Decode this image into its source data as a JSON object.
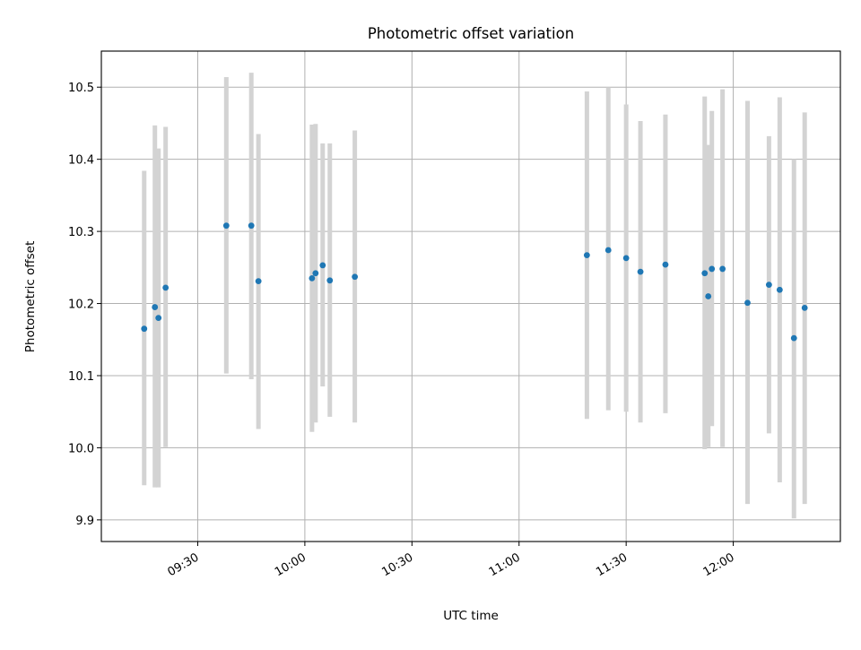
{
  "chart_data": {
    "type": "scatter",
    "title": "Photometric offset variation",
    "xlabel": "UTC time",
    "ylabel": "Photometric offset",
    "xlim": [
      "09:03",
      "12:30"
    ],
    "ylim": [
      9.87,
      10.55
    ],
    "xticks": [
      "09:30",
      "10:00",
      "10:30",
      "11:00",
      "11:30",
      "12:00"
    ],
    "yticks": [
      "9.9",
      "10.0",
      "10.1",
      "10.2",
      "10.3",
      "10.4",
      "10.5"
    ],
    "grid": true,
    "errorbar_color": "#d3d3d3",
    "marker_color": "#1f77b4",
    "points": [
      {
        "x": "09:15",
        "y": 10.165,
        "ylow": 9.948,
        "yhigh": 10.384
      },
      {
        "x": "09:18",
        "y": 10.195,
        "ylow": 9.945,
        "yhigh": 10.447
      },
      {
        "x": "09:19",
        "y": 10.18,
        "ylow": 9.945,
        "yhigh": 10.415
      },
      {
        "x": "09:21",
        "y": 10.222,
        "ylow": 10.001,
        "yhigh": 10.445
      },
      {
        "x": "09:38",
        "y": 10.308,
        "ylow": 10.103,
        "yhigh": 10.514
      },
      {
        "x": "09:45",
        "y": 10.308,
        "ylow": 10.095,
        "yhigh": 10.52
      },
      {
        "x": "09:47",
        "y": 10.231,
        "ylow": 10.026,
        "yhigh": 10.435
      },
      {
        "x": "10:02",
        "y": 10.235,
        "ylow": 10.022,
        "yhigh": 10.448
      },
      {
        "x": "10:03",
        "y": 10.242,
        "ylow": 10.035,
        "yhigh": 10.449
      },
      {
        "x": "10:05",
        "y": 10.253,
        "ylow": 10.085,
        "yhigh": 10.422
      },
      {
        "x": "10:07",
        "y": 10.232,
        "ylow": 10.043,
        "yhigh": 10.422
      },
      {
        "x": "10:14",
        "y": 10.237,
        "ylow": 10.035,
        "yhigh": 10.44
      },
      {
        "x": "11:19",
        "y": 10.267,
        "ylow": 10.04,
        "yhigh": 10.494
      },
      {
        "x": "11:25",
        "y": 10.274,
        "ylow": 10.052,
        "yhigh": 10.5
      },
      {
        "x": "11:30",
        "y": 10.263,
        "ylow": 10.05,
        "yhigh": 10.476
      },
      {
        "x": "11:34",
        "y": 10.244,
        "ylow": 10.035,
        "yhigh": 10.453
      },
      {
        "x": "11:41",
        "y": 10.254,
        "ylow": 10.048,
        "yhigh": 10.462
      },
      {
        "x": "11:52",
        "y": 10.242,
        "ylow": 9.998,
        "yhigh": 10.487
      },
      {
        "x": "11:53",
        "y": 10.21,
        "ylow": 10.001,
        "yhigh": 10.42
      },
      {
        "x": "11:54",
        "y": 10.248,
        "ylow": 10.03,
        "yhigh": 10.467
      },
      {
        "x": "11:57",
        "y": 10.248,
        "ylow": 10.001,
        "yhigh": 10.497
      },
      {
        "x": "12:04",
        "y": 10.201,
        "ylow": 9.922,
        "yhigh": 10.481
      },
      {
        "x": "12:10",
        "y": 10.226,
        "ylow": 10.02,
        "yhigh": 10.432
      },
      {
        "x": "12:13",
        "y": 10.219,
        "ylow": 9.952,
        "yhigh": 10.486
      },
      {
        "x": "12:17",
        "y": 10.152,
        "ylow": 9.902,
        "yhigh": 10.4
      },
      {
        "x": "12:20",
        "y": 10.194,
        "ylow": 9.922,
        "yhigh": 10.465
      }
    ]
  }
}
